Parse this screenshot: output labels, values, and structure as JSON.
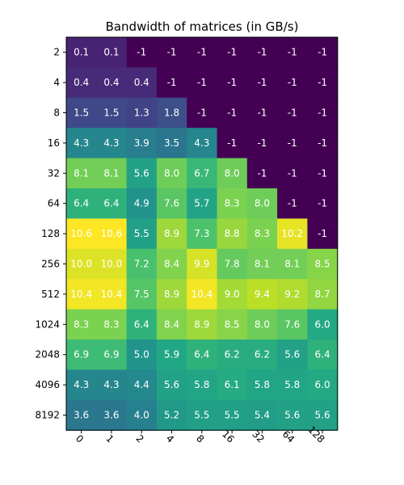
{
  "chart_data": {
    "type": "heatmap",
    "title": "Bandwidth of matrices (in GB/s)",
    "xlabel": "",
    "ylabel": "",
    "x_categories": [
      "0",
      "1",
      "2",
      "4",
      "8",
      "16",
      "32",
      "64",
      "128"
    ],
    "y_categories": [
      "2",
      "4",
      "8",
      "16",
      "32",
      "64",
      "128",
      "256",
      "512",
      "1024",
      "2048",
      "4096",
      "8192"
    ],
    "values": [
      [
        0.1,
        0.1,
        -1,
        -1,
        -1,
        -1,
        -1,
        -1,
        -1
      ],
      [
        0.4,
        0.4,
        0.4,
        -1,
        -1,
        -1,
        -1,
        -1,
        -1
      ],
      [
        1.5,
        1.5,
        1.3,
        1.8,
        -1,
        -1,
        -1,
        -1,
        -1
      ],
      [
        4.3,
        4.3,
        3.9,
        3.5,
        4.3,
        -1,
        -1,
        -1,
        -1
      ],
      [
        8.1,
        8.1,
        5.6,
        8.0,
        6.7,
        8.0,
        -1,
        -1,
        -1
      ],
      [
        6.4,
        6.4,
        4.9,
        7.6,
        5.7,
        8.3,
        8.0,
        -1,
        -1
      ],
      [
        10.6,
        10.6,
        5.5,
        8.9,
        7.3,
        8.8,
        8.3,
        10.2,
        -1
      ],
      [
        10.0,
        10.0,
        7.2,
        8.4,
        9.9,
        7.8,
        8.1,
        8.1,
        8.5
      ],
      [
        10.4,
        10.4,
        7.5,
        8.9,
        10.4,
        9.0,
        9.4,
        9.2,
        8.7
      ],
      [
        8.3,
        8.3,
        6.4,
        8.4,
        8.9,
        8.5,
        8.0,
        7.6,
        6.0
      ],
      [
        6.9,
        6.9,
        5.0,
        5.9,
        6.4,
        6.2,
        6.2,
        5.6,
        6.4
      ],
      [
        4.3,
        4.3,
        4.4,
        5.6,
        5.8,
        6.1,
        5.8,
        5.8,
        6.0
      ],
      [
        3.6,
        3.6,
        4.0,
        5.2,
        5.5,
        5.5,
        5.4,
        5.6,
        5.6
      ]
    ],
    "cell_labels": [
      [
        "0.1",
        "0.1",
        "-1",
        "-1",
        "-1",
        "-1",
        "-1",
        "-1",
        "-1"
      ],
      [
        "0.4",
        "0.4",
        "0.4",
        "-1",
        "-1",
        "-1",
        "-1",
        "-1",
        "-1"
      ],
      [
        "1.5",
        "1.5",
        "1.3",
        "1.8",
        "-1",
        "-1",
        "-1",
        "-1",
        "-1"
      ],
      [
        "4.3",
        "4.3",
        "3.9",
        "3.5",
        "4.3",
        "-1",
        "-1",
        "-1",
        "-1"
      ],
      [
        "8.1",
        "8.1",
        "5.6",
        "8.0",
        "6.7",
        "8.0",
        "-1",
        "-1",
        "-1"
      ],
      [
        "6.4",
        "6.4",
        "4.9",
        "7.6",
        "5.7",
        "8.3",
        "8.0",
        "-1",
        "-1"
      ],
      [
        "10.6",
        "10.6",
        "5.5",
        "8.9",
        "7.3",
        "8.8",
        "8.3",
        "10.2",
        "-1"
      ],
      [
        "10.0",
        "10.0",
        "7.2",
        "8.4",
        "9.9",
        "7.8",
        "8.1",
        "8.1",
        "8.5"
      ],
      [
        "10.4",
        "10.4",
        "7.5",
        "8.9",
        "10.4",
        "9.0",
        "9.4",
        "9.2",
        "8.7"
      ],
      [
        "8.3",
        "8.3",
        "6.4",
        "8.4",
        "8.9",
        "8.5",
        "8.0",
        "7.6",
        "6.0"
      ],
      [
        "6.9",
        "6.9",
        "5.0",
        "5.9",
        "6.4",
        "6.2",
        "6.2",
        "5.6",
        "6.4"
      ],
      [
        "4.3",
        "4.3",
        "4.4",
        "5.6",
        "5.8",
        "6.1",
        "5.8",
        "5.8",
        "6.0"
      ],
      [
        "3.6",
        "3.6",
        "4.0",
        "5.2",
        "5.5",
        "5.5",
        "5.4",
        "5.6",
        "5.6"
      ]
    ],
    "colormap": "viridis",
    "color_range": [
      -1,
      10.6
    ],
    "grid": false,
    "legend": "none"
  }
}
